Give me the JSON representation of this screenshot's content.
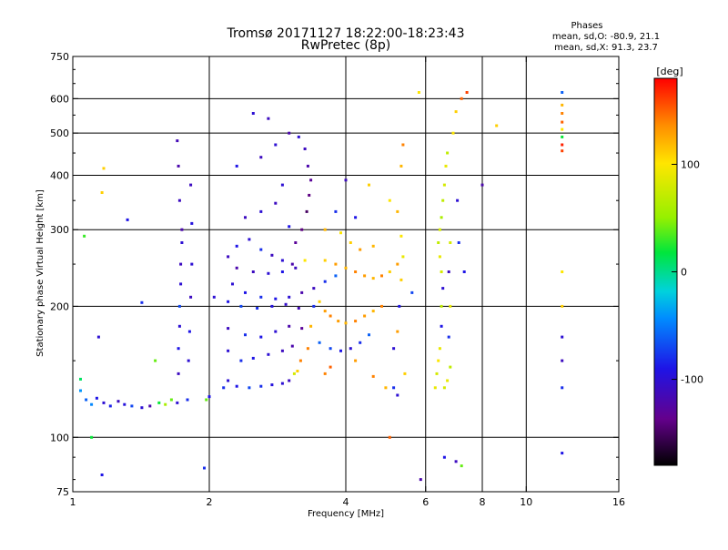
{
  "title_line1": "Tromsø 20171127 18:22:00-18:23:43",
  "title_line2": "RwPretec (8p)",
  "info": {
    "heading": "Phases",
    "line1": "mean, sd,O: -80.9, 21.1",
    "line2": "mean, sd,X:  91.3, 23.7"
  },
  "colorbar": {
    "label": "[deg]",
    "range": [
      -180,
      180
    ],
    "ticks": [
      {
        "value": 100,
        "label": "100"
      },
      {
        "value": 0,
        "label": "0"
      },
      {
        "value": -100,
        "label": "-100"
      }
    ]
  },
  "chart_data": {
    "type": "scatter",
    "title": "Tromsø 20171127 18:22:00-18:23:43",
    "subtitle": "RwPretec (8p)",
    "xlabel": "Frequency [MHz]",
    "ylabel": "Stationary phase Virtual Height [km]",
    "x_scale": "log",
    "y_scale": "log",
    "xlim": [
      1,
      16
    ],
    "ylim": [
      75,
      750
    ],
    "x_ticks": [
      {
        "value": 1,
        "label": "1"
      },
      {
        "value": 2,
        "label": "2"
      },
      {
        "value": 4,
        "label": "4"
      },
      {
        "value": 6,
        "label": "6"
      },
      {
        "value": 8,
        "label": "8"
      },
      {
        "value": 10,
        "label": "10"
      },
      {
        "value": 16,
        "label": "16"
      }
    ],
    "x_gridlines": [
      2,
      4,
      6,
      8,
      10
    ],
    "y_ticks": [
      {
        "value": 75,
        "label": "75"
      },
      {
        "value": 100,
        "label": "100"
      },
      {
        "value": 200,
        "label": "200"
      },
      {
        "value": 300,
        "label": "300"
      },
      {
        "value": 400,
        "label": "400"
      },
      {
        "value": 500,
        "label": "500"
      },
      {
        "value": 600,
        "label": "600"
      },
      {
        "value": 750,
        "label": "750"
      }
    ],
    "y_gridlines": [
      100,
      200,
      300,
      400,
      500,
      600
    ],
    "grid": true,
    "color_variable": "phase [deg]",
    "points": [
      {
        "x": 1.04,
        "y": 128,
        "phase": -40
      },
      {
        "x": 1.07,
        "y": 122,
        "phase": -60
      },
      {
        "x": 1.1,
        "y": 119,
        "phase": -45
      },
      {
        "x": 1.13,
        "y": 123,
        "phase": -90
      },
      {
        "x": 1.17,
        "y": 120,
        "phase": -100
      },
      {
        "x": 1.21,
        "y": 118,
        "phase": -85
      },
      {
        "x": 1.26,
        "y": 121,
        "phase": -110
      },
      {
        "x": 1.3,
        "y": 119,
        "phase": -95
      },
      {
        "x": 1.35,
        "y": 118,
        "phase": -70
      },
      {
        "x": 1.42,
        "y": 117,
        "phase": -100
      },
      {
        "x": 1.48,
        "y": 118,
        "phase": -120
      },
      {
        "x": 1.55,
        "y": 120,
        "phase": 20
      },
      {
        "x": 1.6,
        "y": 119,
        "phase": 60
      },
      {
        "x": 1.65,
        "y": 122,
        "phase": 40
      },
      {
        "x": 1.04,
        "y": 136,
        "phase": 10
      },
      {
        "x": 1.06,
        "y": 290,
        "phase": 30
      },
      {
        "x": 1.14,
        "y": 170,
        "phase": -100
      },
      {
        "x": 1.16,
        "y": 365,
        "phase": 110
      },
      {
        "x": 1.17,
        "y": 415,
        "phase": 110
      },
      {
        "x": 1.16,
        "y": 82,
        "phase": -90
      },
      {
        "x": 1.1,
        "y": 100,
        "phase": 20
      },
      {
        "x": 1.32,
        "y": 316,
        "phase": -90
      },
      {
        "x": 1.42,
        "y": 204,
        "phase": -80
      },
      {
        "x": 1.52,
        "y": 150,
        "phase": 40
      },
      {
        "x": 1.7,
        "y": 120,
        "phase": -100
      },
      {
        "x": 1.71,
        "y": 140,
        "phase": -110
      },
      {
        "x": 1.71,
        "y": 160,
        "phase": -90
      },
      {
        "x": 1.72,
        "y": 180,
        "phase": -100
      },
      {
        "x": 1.72,
        "y": 200,
        "phase": -70
      },
      {
        "x": 1.73,
        "y": 225,
        "phase": -100
      },
      {
        "x": 1.73,
        "y": 250,
        "phase": -110
      },
      {
        "x": 1.74,
        "y": 280,
        "phase": -100
      },
      {
        "x": 1.74,
        "y": 300,
        "phase": -120
      },
      {
        "x": 1.72,
        "y": 350,
        "phase": -110
      },
      {
        "x": 1.71,
        "y": 420,
        "phase": -120
      },
      {
        "x": 1.7,
        "y": 480,
        "phase": -115
      },
      {
        "x": 1.79,
        "y": 122,
        "phase": -80
      },
      {
        "x": 1.8,
        "y": 150,
        "phase": -100
      },
      {
        "x": 1.81,
        "y": 175,
        "phase": -90
      },
      {
        "x": 1.82,
        "y": 210,
        "phase": -110
      },
      {
        "x": 1.83,
        "y": 250,
        "phase": -100
      },
      {
        "x": 1.83,
        "y": 310,
        "phase": -95
      },
      {
        "x": 1.82,
        "y": 380,
        "phase": -110
      },
      {
        "x": 1.97,
        "y": 122,
        "phase": 40
      },
      {
        "x": 2.0,
        "y": 124,
        "phase": -90
      },
      {
        "x": 1.95,
        "y": 85,
        "phase": -80
      },
      {
        "x": 2.05,
        "y": 210,
        "phase": -100
      },
      {
        "x": 2.15,
        "y": 130,
        "phase": -80
      },
      {
        "x": 2.2,
        "y": 135,
        "phase": -100
      },
      {
        "x": 2.3,
        "y": 131,
        "phase": -90
      },
      {
        "x": 2.45,
        "y": 130,
        "phase": -70
      },
      {
        "x": 2.6,
        "y": 131,
        "phase": -80
      },
      {
        "x": 2.75,
        "y": 132,
        "phase": -95
      },
      {
        "x": 2.9,
        "y": 133,
        "phase": -100
      },
      {
        "x": 3.0,
        "y": 135,
        "phase": -110
      },
      {
        "x": 3.08,
        "y": 140,
        "phase": 80
      },
      {
        "x": 3.13,
        "y": 142,
        "phase": 110
      },
      {
        "x": 3.18,
        "y": 150,
        "phase": 140
      },
      {
        "x": 2.2,
        "y": 158,
        "phase": -100
      },
      {
        "x": 2.35,
        "y": 150,
        "phase": -80
      },
      {
        "x": 2.5,
        "y": 152,
        "phase": -90
      },
      {
        "x": 2.7,
        "y": 155,
        "phase": -100
      },
      {
        "x": 2.9,
        "y": 158,
        "phase": -110
      },
      {
        "x": 3.05,
        "y": 162,
        "phase": -120
      },
      {
        "x": 2.2,
        "y": 178,
        "phase": -110
      },
      {
        "x": 2.4,
        "y": 172,
        "phase": -80
      },
      {
        "x": 2.6,
        "y": 170,
        "phase": -90
      },
      {
        "x": 2.8,
        "y": 175,
        "phase": -100
      },
      {
        "x": 3.0,
        "y": 180,
        "phase": -120
      },
      {
        "x": 3.2,
        "y": 178,
        "phase": -130
      },
      {
        "x": 2.2,
        "y": 205,
        "phase": -90
      },
      {
        "x": 2.35,
        "y": 200,
        "phase": -70
      },
      {
        "x": 2.55,
        "y": 198,
        "phase": -80
      },
      {
        "x": 2.75,
        "y": 200,
        "phase": -95
      },
      {
        "x": 2.95,
        "y": 202,
        "phase": -105
      },
      {
        "x": 3.15,
        "y": 198,
        "phase": -115
      },
      {
        "x": 2.25,
        "y": 225,
        "phase": -100
      },
      {
        "x": 2.4,
        "y": 215,
        "phase": -90
      },
      {
        "x": 2.6,
        "y": 210,
        "phase": -80
      },
      {
        "x": 2.8,
        "y": 208,
        "phase": -90
      },
      {
        "x": 3.0,
        "y": 210,
        "phase": -100
      },
      {
        "x": 3.2,
        "y": 215,
        "phase": -120
      },
      {
        "x": 3.4,
        "y": 220,
        "phase": -110
      },
      {
        "x": 3.6,
        "y": 228,
        "phase": -80
      },
      {
        "x": 3.8,
        "y": 235,
        "phase": -60
      },
      {
        "x": 2.2,
        "y": 260,
        "phase": -110
      },
      {
        "x": 2.3,
        "y": 275,
        "phase": -90
      },
      {
        "x": 2.45,
        "y": 285,
        "phase": -100
      },
      {
        "x": 2.6,
        "y": 270,
        "phase": -80
      },
      {
        "x": 2.75,
        "y": 262,
        "phase": -110
      },
      {
        "x": 2.9,
        "y": 255,
        "phase": -100
      },
      {
        "x": 3.05,
        "y": 250,
        "phase": -120
      },
      {
        "x": 2.3,
        "y": 245,
        "phase": -120
      },
      {
        "x": 2.5,
        "y": 240,
        "phase": -110
      },
      {
        "x": 2.7,
        "y": 238,
        "phase": -100
      },
      {
        "x": 2.9,
        "y": 240,
        "phase": -90
      },
      {
        "x": 3.1,
        "y": 245,
        "phase": -110
      },
      {
        "x": 3.25,
        "y": 255,
        "phase": 100
      },
      {
        "x": 3.1,
        "y": 280,
        "phase": -130
      },
      {
        "x": 3.2,
        "y": 300,
        "phase": -140
      },
      {
        "x": 3.28,
        "y": 330,
        "phase": -150
      },
      {
        "x": 3.32,
        "y": 360,
        "phase": -140
      },
      {
        "x": 3.35,
        "y": 390,
        "phase": -130
      },
      {
        "x": 3.3,
        "y": 420,
        "phase": -120
      },
      {
        "x": 3.25,
        "y": 460,
        "phase": -110
      },
      {
        "x": 3.15,
        "y": 490,
        "phase": -100
      },
      {
        "x": 2.7,
        "y": 540,
        "phase": -110
      },
      {
        "x": 2.5,
        "y": 555,
        "phase": -100
      },
      {
        "x": 2.6,
        "y": 440,
        "phase": -110
      },
      {
        "x": 2.8,
        "y": 470,
        "phase": -100
      },
      {
        "x": 3.0,
        "y": 500,
        "phase": -120
      },
      {
        "x": 2.4,
        "y": 320,
        "phase": -110
      },
      {
        "x": 2.6,
        "y": 330,
        "phase": -100
      },
      {
        "x": 2.8,
        "y": 345,
        "phase": -110
      },
      {
        "x": 3.0,
        "y": 305,
        "phase": -90
      },
      {
        "x": 2.3,
        "y": 420,
        "phase": -90
      },
      {
        "x": 2.9,
        "y": 380,
        "phase": -100
      },
      {
        "x": 3.3,
        "y": 160,
        "phase": 140
      },
      {
        "x": 3.35,
        "y": 180,
        "phase": 120
      },
      {
        "x": 3.4,
        "y": 200,
        "phase": -80
      },
      {
        "x": 3.5,
        "y": 205,
        "phase": 110
      },
      {
        "x": 3.6,
        "y": 195,
        "phase": 130
      },
      {
        "x": 3.7,
        "y": 190,
        "phase": 140
      },
      {
        "x": 3.85,
        "y": 185,
        "phase": 130
      },
      {
        "x": 4.0,
        "y": 183,
        "phase": 120
      },
      {
        "x": 4.2,
        "y": 185,
        "phase": 140
      },
      {
        "x": 4.4,
        "y": 190,
        "phase": 130
      },
      {
        "x": 4.6,
        "y": 195,
        "phase": 120
      },
      {
        "x": 4.8,
        "y": 200,
        "phase": 140
      },
      {
        "x": 3.5,
        "y": 165,
        "phase": -60
      },
      {
        "x": 3.7,
        "y": 160,
        "phase": -70
      },
      {
        "x": 3.9,
        "y": 158,
        "phase": -90
      },
      {
        "x": 4.1,
        "y": 160,
        "phase": -100
      },
      {
        "x": 4.3,
        "y": 165,
        "phase": -80
      },
      {
        "x": 4.5,
        "y": 172,
        "phase": -60
      },
      {
        "x": 3.6,
        "y": 140,
        "phase": 140
      },
      {
        "x": 3.7,
        "y": 145,
        "phase": 150
      },
      {
        "x": 4.2,
        "y": 150,
        "phase": 130
      },
      {
        "x": 4.6,
        "y": 138,
        "phase": 140
      },
      {
        "x": 4.9,
        "y": 130,
        "phase": 120
      },
      {
        "x": 5.1,
        "y": 130,
        "phase": -80
      },
      {
        "x": 5.2,
        "y": 125,
        "phase": -100
      },
      {
        "x": 3.6,
        "y": 255,
        "phase": 110
      },
      {
        "x": 3.8,
        "y": 250,
        "phase": 130
      },
      {
        "x": 4.0,
        "y": 245,
        "phase": 120
      },
      {
        "x": 4.2,
        "y": 240,
        "phase": 140
      },
      {
        "x": 4.4,
        "y": 235,
        "phase": 130
      },
      {
        "x": 4.6,
        "y": 232,
        "phase": 120
      },
      {
        "x": 4.8,
        "y": 235,
        "phase": 140
      },
      {
        "x": 5.0,
        "y": 240,
        "phase": 110
      },
      {
        "x": 5.2,
        "y": 250,
        "phase": 130
      },
      {
        "x": 3.6,
        "y": 300,
        "phase": 120
      },
      {
        "x": 3.9,
        "y": 295,
        "phase": 100
      },
      {
        "x": 4.1,
        "y": 280,
        "phase": 110
      },
      {
        "x": 4.3,
        "y": 270,
        "phase": 130
      },
      {
        "x": 4.6,
        "y": 275,
        "phase": 120
      },
      {
        "x": 3.8,
        "y": 330,
        "phase": -80
      },
      {
        "x": 4.2,
        "y": 320,
        "phase": -90
      },
      {
        "x": 4.0,
        "y": 390,
        "phase": -110
      },
      {
        "x": 4.5,
        "y": 380,
        "phase": 110
      },
      {
        "x": 5.0,
        "y": 350,
        "phase": 100
      },
      {
        "x": 5.2,
        "y": 330,
        "phase": 120
      },
      {
        "x": 5.3,
        "y": 290,
        "phase": 100
      },
      {
        "x": 5.35,
        "y": 260,
        "phase": 90
      },
      {
        "x": 5.3,
        "y": 230,
        "phase": 110
      },
      {
        "x": 5.25,
        "y": 200,
        "phase": -90
      },
      {
        "x": 5.2,
        "y": 175,
        "phase": 130
      },
      {
        "x": 5.1,
        "y": 160,
        "phase": -100
      },
      {
        "x": 5.3,
        "y": 420,
        "phase": 120
      },
      {
        "x": 5.35,
        "y": 470,
        "phase": 140
      },
      {
        "x": 5.4,
        "y": 140,
        "phase": 110
      },
      {
        "x": 5.0,
        "y": 100,
        "phase": 150
      },
      {
        "x": 5.6,
        "y": 215,
        "phase": -70
      },
      {
        "x": 5.8,
        "y": 620,
        "phase": 100
      },
      {
        "x": 5.85,
        "y": 80,
        "phase": -120
      },
      {
        "x": 6.3,
        "y": 130,
        "phase": 90
      },
      {
        "x": 6.35,
        "y": 140,
        "phase": 80
      },
      {
        "x": 6.4,
        "y": 150,
        "phase": 100
      },
      {
        "x": 6.45,
        "y": 160,
        "phase": 90
      },
      {
        "x": 6.5,
        "y": 180,
        "phase": -90
      },
      {
        "x": 6.5,
        "y": 200,
        "phase": 70
      },
      {
        "x": 6.55,
        "y": 220,
        "phase": -100
      },
      {
        "x": 6.5,
        "y": 240,
        "phase": 80
      },
      {
        "x": 6.45,
        "y": 260,
        "phase": 90
      },
      {
        "x": 6.4,
        "y": 280,
        "phase": 70
      },
      {
        "x": 6.45,
        "y": 300,
        "phase": 80
      },
      {
        "x": 6.5,
        "y": 320,
        "phase": 60
      },
      {
        "x": 6.55,
        "y": 350,
        "phase": 70
      },
      {
        "x": 6.6,
        "y": 380,
        "phase": 80
      },
      {
        "x": 6.65,
        "y": 420,
        "phase": 90
      },
      {
        "x": 6.7,
        "y": 450,
        "phase": 70
      },
      {
        "x": 6.6,
        "y": 130,
        "phase": 80
      },
      {
        "x": 6.7,
        "y": 135,
        "phase": 90
      },
      {
        "x": 6.8,
        "y": 145,
        "phase": 70
      },
      {
        "x": 6.75,
        "y": 170,
        "phase": -80
      },
      {
        "x": 6.8,
        "y": 200,
        "phase": 90
      },
      {
        "x": 6.75,
        "y": 240,
        "phase": -110
      },
      {
        "x": 6.8,
        "y": 280,
        "phase": 80
      },
      {
        "x": 6.9,
        "y": 500,
        "phase": 100
      },
      {
        "x": 7.0,
        "y": 560,
        "phase": 110
      },
      {
        "x": 7.05,
        "y": 350,
        "phase": -100
      },
      {
        "x": 7.1,
        "y": 280,
        "phase": -80
      },
      {
        "x": 7.2,
        "y": 600,
        "phase": 150
      },
      {
        "x": 7.3,
        "y": 240,
        "phase": -90
      },
      {
        "x": 7.4,
        "y": 620,
        "phase": 160
      },
      {
        "x": 6.6,
        "y": 90,
        "phase": -90
      },
      {
        "x": 7.0,
        "y": 88,
        "phase": -110
      },
      {
        "x": 7.2,
        "y": 86,
        "phase": 40
      },
      {
        "x": 8.0,
        "y": 380,
        "phase": -120
      },
      {
        "x": 8.6,
        "y": 520,
        "phase": 110
      },
      {
        "x": 12.0,
        "y": 620,
        "phase": -60
      },
      {
        "x": 12.0,
        "y": 580,
        "phase": 120
      },
      {
        "x": 12.0,
        "y": 555,
        "phase": 140
      },
      {
        "x": 12.0,
        "y": 530,
        "phase": 150
      },
      {
        "x": 12.0,
        "y": 510,
        "phase": 100
      },
      {
        "x": 12.0,
        "y": 490,
        "phase": 20
      },
      {
        "x": 12.0,
        "y": 470,
        "phase": 170
      },
      {
        "x": 12.0,
        "y": 455,
        "phase": 160
      },
      {
        "x": 12.0,
        "y": 240,
        "phase": 100
      },
      {
        "x": 12.0,
        "y": 200,
        "phase": 110
      },
      {
        "x": 12.0,
        "y": 170,
        "phase": -100
      },
      {
        "x": 12.0,
        "y": 150,
        "phase": -110
      },
      {
        "x": 12.0,
        "y": 130,
        "phase": -80
      },
      {
        "x": 12.0,
        "y": 92,
        "phase": -90
      }
    ]
  }
}
